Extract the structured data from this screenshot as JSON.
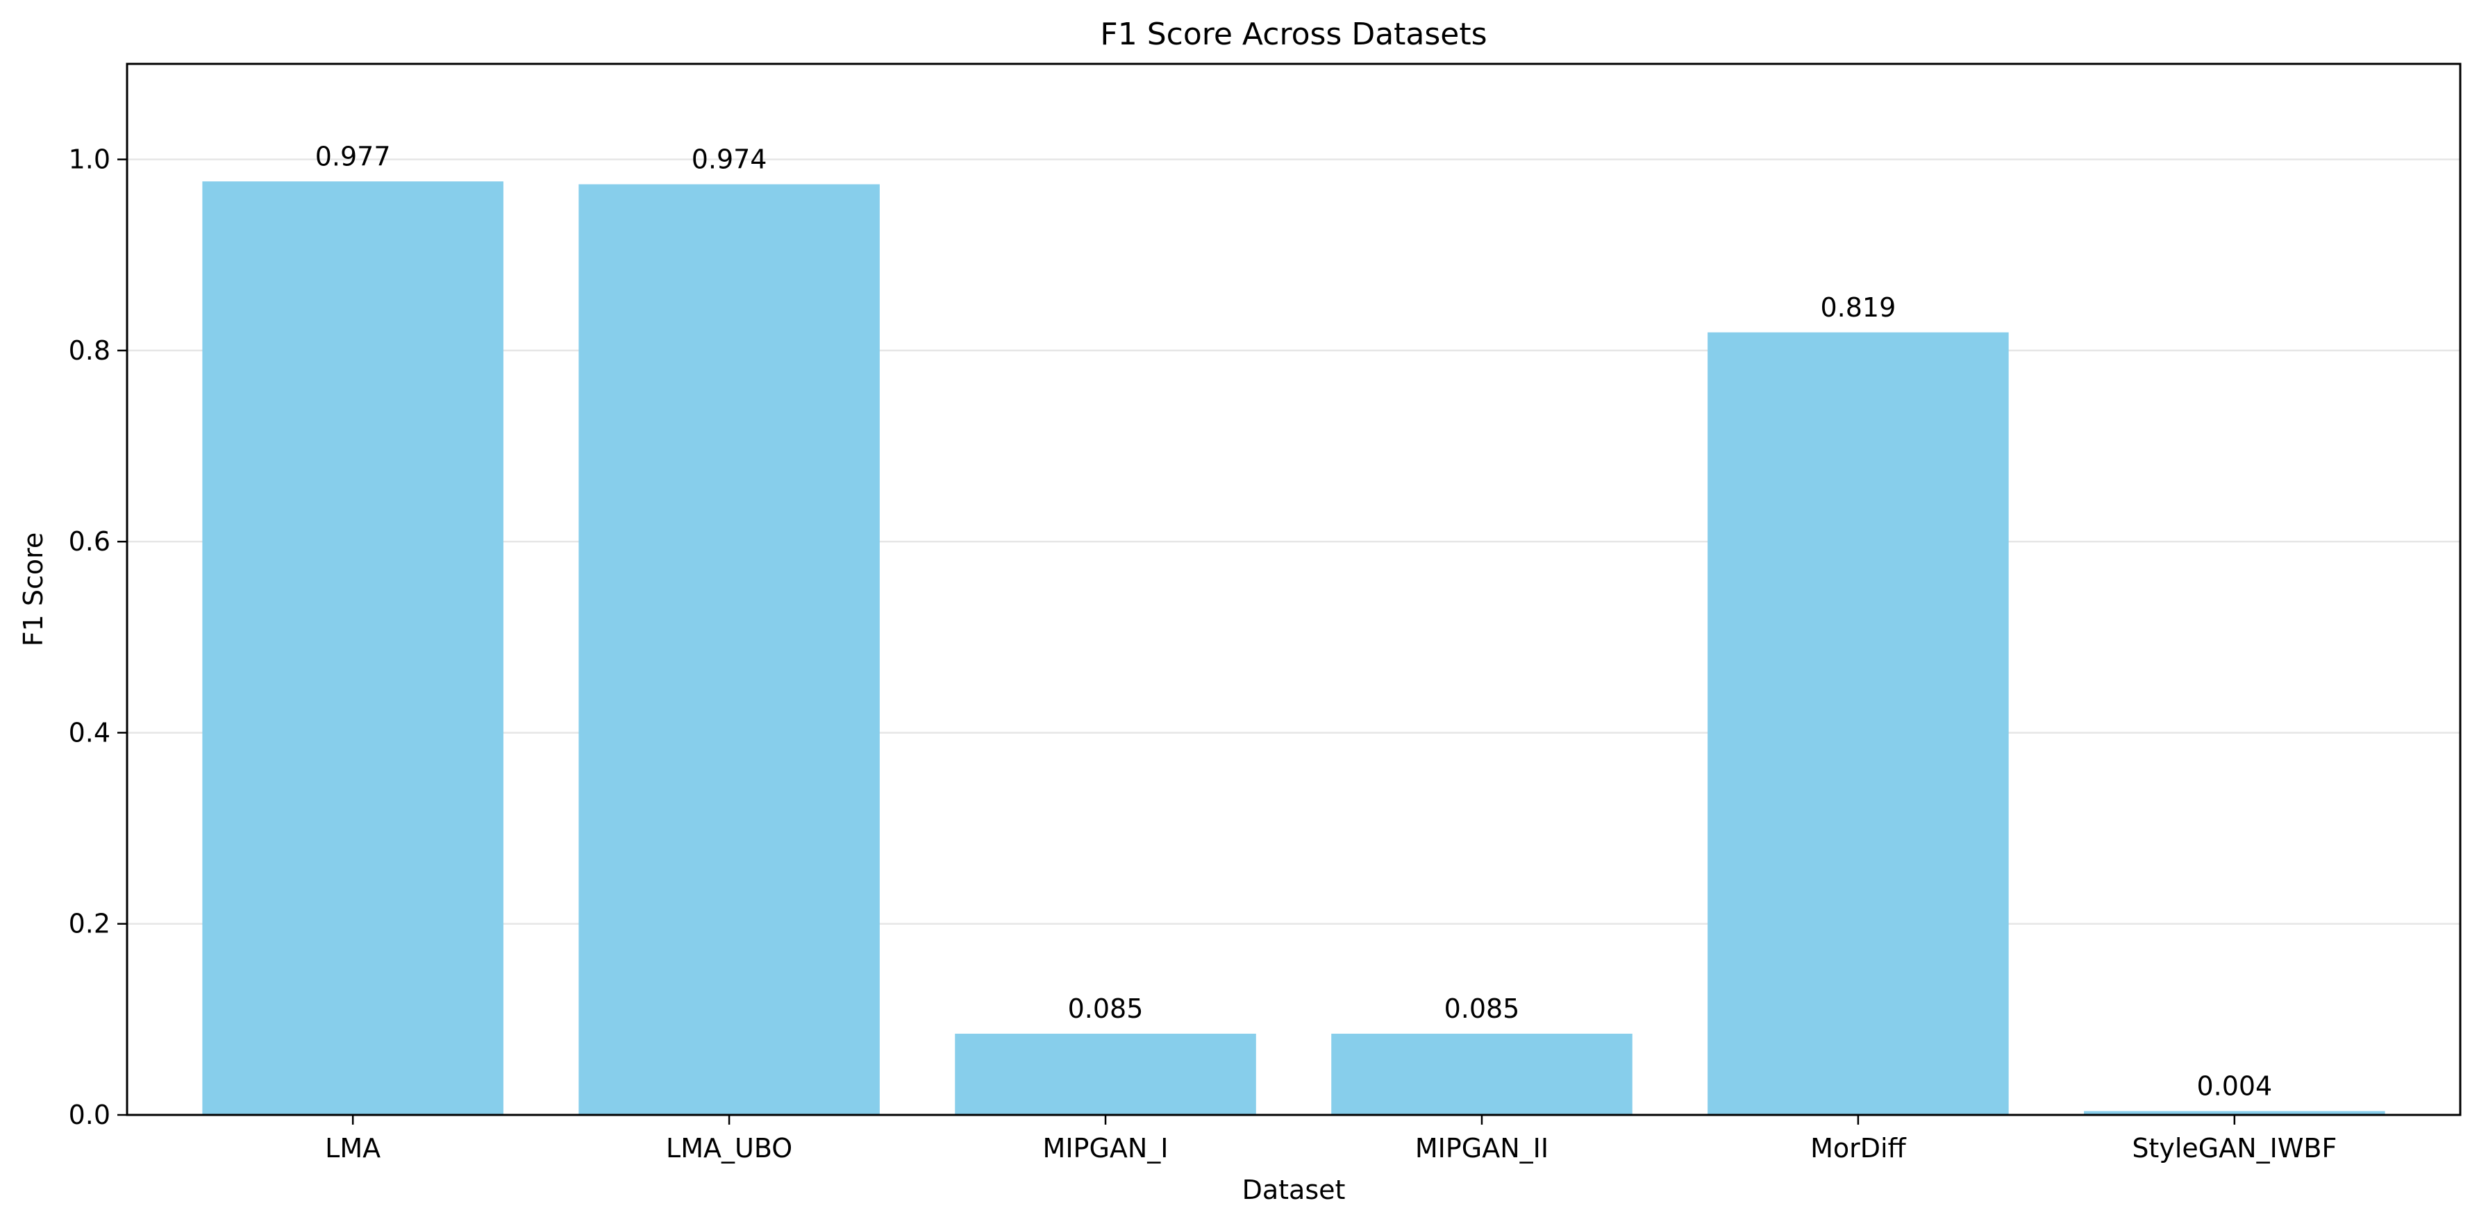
{
  "chart_data": {
    "type": "bar",
    "title": "F1 Score Across Datasets",
    "xlabel": "Dataset",
    "ylabel": "F1 Score",
    "categories": [
      "LMA",
      "LMA_UBO",
      "MIPGAN_I",
      "MIPGAN_II",
      "MorDiff",
      "StyleGAN_IWBF"
    ],
    "values": [
      0.977,
      0.974,
      0.085,
      0.085,
      0.819,
      0.004
    ],
    "value_labels": [
      "0.977",
      "0.974",
      "0.085",
      "0.085",
      "0.819",
      "0.004"
    ],
    "ylim": [
      0,
      1.1
    ],
    "yticks": [
      0.0,
      0.2,
      0.4,
      0.6,
      0.8,
      1.0
    ],
    "ytick_labels": [
      "0.0",
      "0.2",
      "0.4",
      "0.6",
      "0.8",
      "1.0"
    ],
    "grid": "horizontal",
    "bar_color": "#87ceeb"
  }
}
